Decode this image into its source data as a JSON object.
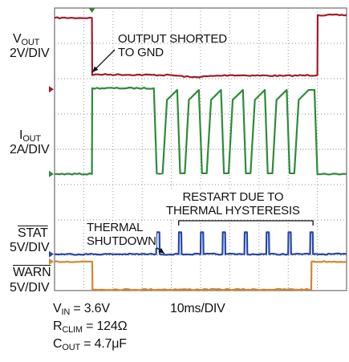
{
  "chart_data": {
    "type": "line",
    "title": "",
    "xlabel": "",
    "ylabel": "",
    "grid": true,
    "grid_divisions": {
      "x": 10,
      "y": 8
    },
    "timebase": "10ms/DIV",
    "xlim_ms": [
      0,
      100
    ],
    "series": [
      {
        "id": "vout",
        "name_main": "V",
        "name_sub": "OUT",
        "scale": "2V/DIV",
        "color": "#a01c2c",
        "baseline_div": 5.7,
        "points_ms_div": [
          [
            0,
            7.72
          ],
          [
            12.8,
            7.72
          ],
          [
            12.9,
            6.1
          ],
          [
            14,
            6.12
          ],
          [
            40,
            6.1
          ],
          [
            47,
            6.04
          ],
          [
            60,
            6.1
          ],
          [
            78,
            6.08
          ],
          [
            90,
            6.1
          ],
          [
            90.1,
            7.8
          ],
          [
            100,
            7.8
          ]
        ]
      },
      {
        "id": "iout",
        "name_main": "I",
        "name_sub": "OUT",
        "scale": "2A/DIV",
        "color": "#2e8b3a",
        "baseline_div": 3.3,
        "points_ms_div": [
          [
            0,
            3.3
          ],
          [
            12.8,
            3.3
          ],
          [
            12.9,
            5.73
          ],
          [
            34,
            5.73
          ],
          [
            35,
            3.32
          ],
          [
            37,
            3.32
          ],
          [
            38.5,
            5.4
          ],
          [
            42,
            5.68
          ],
          [
            43,
            3.32
          ],
          [
            44.6,
            3.32
          ],
          [
            46,
            5.4
          ],
          [
            49.4,
            5.68
          ],
          [
            50.5,
            3.32
          ],
          [
            52.1,
            3.32
          ],
          [
            53.6,
            5.4
          ],
          [
            57,
            5.68
          ],
          [
            58,
            3.32
          ],
          [
            59.6,
            3.32
          ],
          [
            61,
            5.4
          ],
          [
            64.5,
            5.68
          ],
          [
            65.5,
            3.32
          ],
          [
            67.1,
            3.32
          ],
          [
            68.6,
            5.4
          ],
          [
            72,
            5.68
          ],
          [
            73,
            3.32
          ],
          [
            74.6,
            3.32
          ],
          [
            76,
            5.4
          ],
          [
            79.5,
            5.68
          ],
          [
            80.5,
            3.32
          ],
          [
            82.1,
            3.32
          ],
          [
            83.6,
            5.4
          ],
          [
            87,
            5.68
          ],
          [
            88,
            5.68
          ],
          [
            89,
            5.68
          ],
          [
            90,
            3.3
          ],
          [
            100,
            3.3
          ]
        ]
      },
      {
        "id": "stat",
        "name_main": "STAT",
        "scale": "5V/DIV",
        "color": "#2446a8",
        "baseline_div": 1.03,
        "points_ms_div": [
          [
            0,
            1.03
          ],
          [
            34.8,
            1.03
          ],
          [
            34.9,
            1.65
          ],
          [
            35.9,
            1.65
          ],
          [
            36,
            1.03
          ],
          [
            42.5,
            1.03
          ],
          [
            42.6,
            1.65
          ],
          [
            43.4,
            1.65
          ],
          [
            43.5,
            1.03
          ],
          [
            50,
            1.03
          ],
          [
            50.1,
            1.65
          ],
          [
            50.9,
            1.65
          ],
          [
            51,
            1.03
          ],
          [
            57.5,
            1.03
          ],
          [
            57.6,
            1.65
          ],
          [
            58.4,
            1.65
          ],
          [
            58.5,
            1.03
          ],
          [
            65,
            1.03
          ],
          [
            65.1,
            1.65
          ],
          [
            65.9,
            1.65
          ],
          [
            66,
            1.03
          ],
          [
            72.5,
            1.03
          ],
          [
            72.6,
            1.65
          ],
          [
            73.4,
            1.65
          ],
          [
            73.5,
            1.03
          ],
          [
            80,
            1.03
          ],
          [
            80.1,
            1.65
          ],
          [
            80.9,
            1.65
          ],
          [
            81,
            1.03
          ],
          [
            87.5,
            1.03
          ],
          [
            87.6,
            1.65
          ],
          [
            88.4,
            1.65
          ],
          [
            88.5,
            1.03
          ],
          [
            100,
            1.03
          ]
        ]
      },
      {
        "id": "warn",
        "name_main": "WARN",
        "scale": "5V/DIV",
        "color": "#d1872f",
        "baseline_div": 0.82,
        "points_ms_div": [
          [
            0,
            0.82
          ],
          [
            12.9,
            0.82
          ],
          [
            13.0,
            0.03
          ],
          [
            87.9,
            0.03
          ],
          [
            88.0,
            0.82
          ],
          [
            100,
            0.82
          ]
        ]
      }
    ],
    "annotations": [
      {
        "lines": [
          "OUTPUT SHORTED",
          "TO GND"
        ]
      },
      {
        "lines": [
          "THERMAL",
          "SHUTDOWN"
        ]
      },
      {
        "lines": [
          "RESTART DUE TO",
          "THERMAL HYSTERESIS"
        ]
      }
    ],
    "conditions": [
      {
        "main": "V",
        "sub": "IN",
        "value": " = 3.6V"
      },
      {
        "main": "R",
        "sub": "CLIM",
        "value": " = 124Ω"
      },
      {
        "main": "C",
        "sub": "OUT",
        "value": " = 4.7μF"
      }
    ],
    "colors": {
      "grid": "#8f8f8f",
      "frame": "#6f6f6f",
      "background": "#ffffff"
    }
  }
}
